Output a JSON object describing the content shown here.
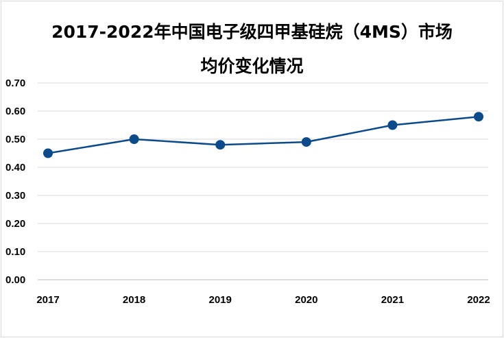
{
  "chart_data": {
    "type": "line",
    "title_line1": "2017-2022年中国电子级四甲基硅烷（4MS）市场",
    "title_line2": "均价变化情况",
    "categories": [
      "2017",
      "2018",
      "2019",
      "2020",
      "2021",
      "2022"
    ],
    "series": [
      {
        "values": [
          0.45,
          0.5,
          0.48,
          0.49,
          0.55,
          0.58
        ]
      }
    ],
    "ylim": [
      0,
      0.7
    ],
    "yticks": [
      "0.00",
      "0.10",
      "0.20",
      "0.30",
      "0.40",
      "0.50",
      "0.60",
      "0.70"
    ],
    "grid": true,
    "line_color": "#0b4a8b",
    "marker_color": "#0b4a8b"
  }
}
